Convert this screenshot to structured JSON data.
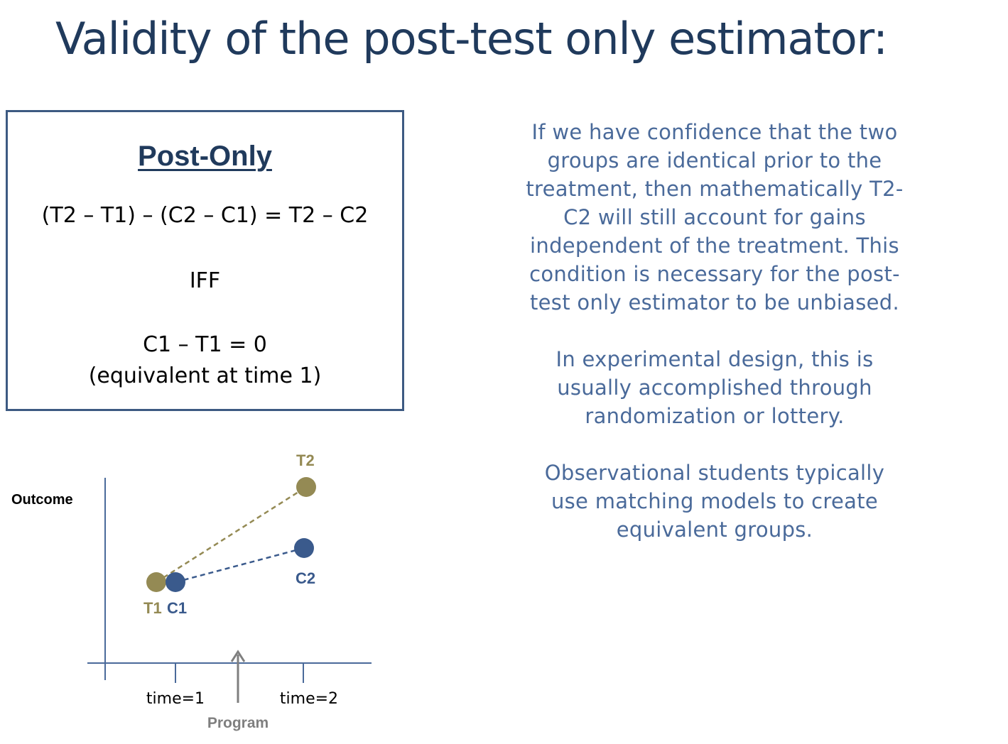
{
  "slide": {
    "title": "Validity of the post-test only estimator:"
  },
  "box": {
    "heading": "Post-Only",
    "formula": "(T2 – T1) – (C2 – C1) = T2 – C2",
    "iff": "IFF",
    "condition": "C1 – T1 = 0",
    "condition_note": "(equivalent at time 1)"
  },
  "paragraphs": {
    "p1": [
      "If we have confidence that the two",
      "groups are identical prior to the",
      "treatment, then mathematically T2-",
      "C2 will still account for gains",
      "independent of the treatment. This",
      "condition is necessary for the post-",
      "test only estimator to be unbiased."
    ],
    "p2": [
      "In experimental design, this is",
      "usually accomplished through",
      "randomization or lottery."
    ],
    "p3": [
      "Observational students typically",
      "use matching models to create",
      "equivalent groups."
    ]
  },
  "diagram": {
    "y_axis_label": "Outcome",
    "x_ticks": [
      "time=1",
      "time=2"
    ],
    "program_label": "Program",
    "points": {
      "T1": "T1",
      "C1": "C1",
      "T2": "T2",
      "C2": "C2"
    },
    "colors": {
      "treatment": "#948a54",
      "control": "#3a5a8c",
      "axis": "#4a6a9a",
      "program_arrow": "#7f7f7f"
    }
  }
}
